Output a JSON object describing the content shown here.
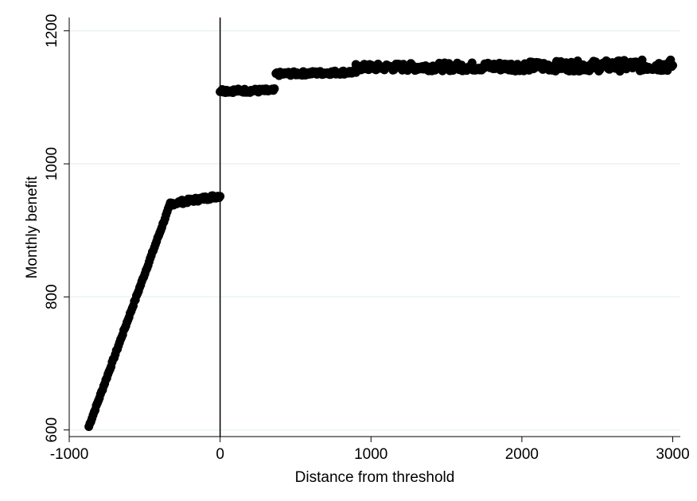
{
  "chart_data": {
    "type": "scatter",
    "title": "",
    "xlabel": "Distance from threshold",
    "ylabel": "Monthly benefit",
    "xlim": [
      -1000,
      3050
    ],
    "ylim": [
      590,
      1220
    ],
    "x_ticks": [
      -1000,
      0,
      1000,
      2000,
      3000
    ],
    "x_tick_labels": [
      "-1000",
      "0",
      "1000",
      "2000",
      "3000"
    ],
    "y_ticks": [
      600,
      800,
      1000,
      1200
    ],
    "y_tick_labels": [
      "600",
      "800",
      "1000",
      "1200"
    ],
    "grid": "horizontal",
    "legend": "none",
    "threshold_line_x": 0,
    "marker_color": "#000000",
    "grid_color": "#eaf2f3",
    "segments": [
      {
        "x_start": -870,
        "x_end": -330,
        "y_start": 605,
        "y_end": 940
      },
      {
        "x_start": -330,
        "x_end": 0,
        "y_start": 940,
        "y_end": 952
      },
      {
        "x_start": 0,
        "x_end": 360,
        "y_start": 1110,
        "y_end": 1110
      },
      {
        "x_start": 370,
        "x_end": 900,
        "y_start": 1135,
        "y_end": 1138
      },
      {
        "x_start": 900,
        "x_end": 3000,
        "y_start": 1145,
        "y_end": 1148
      }
    ]
  }
}
